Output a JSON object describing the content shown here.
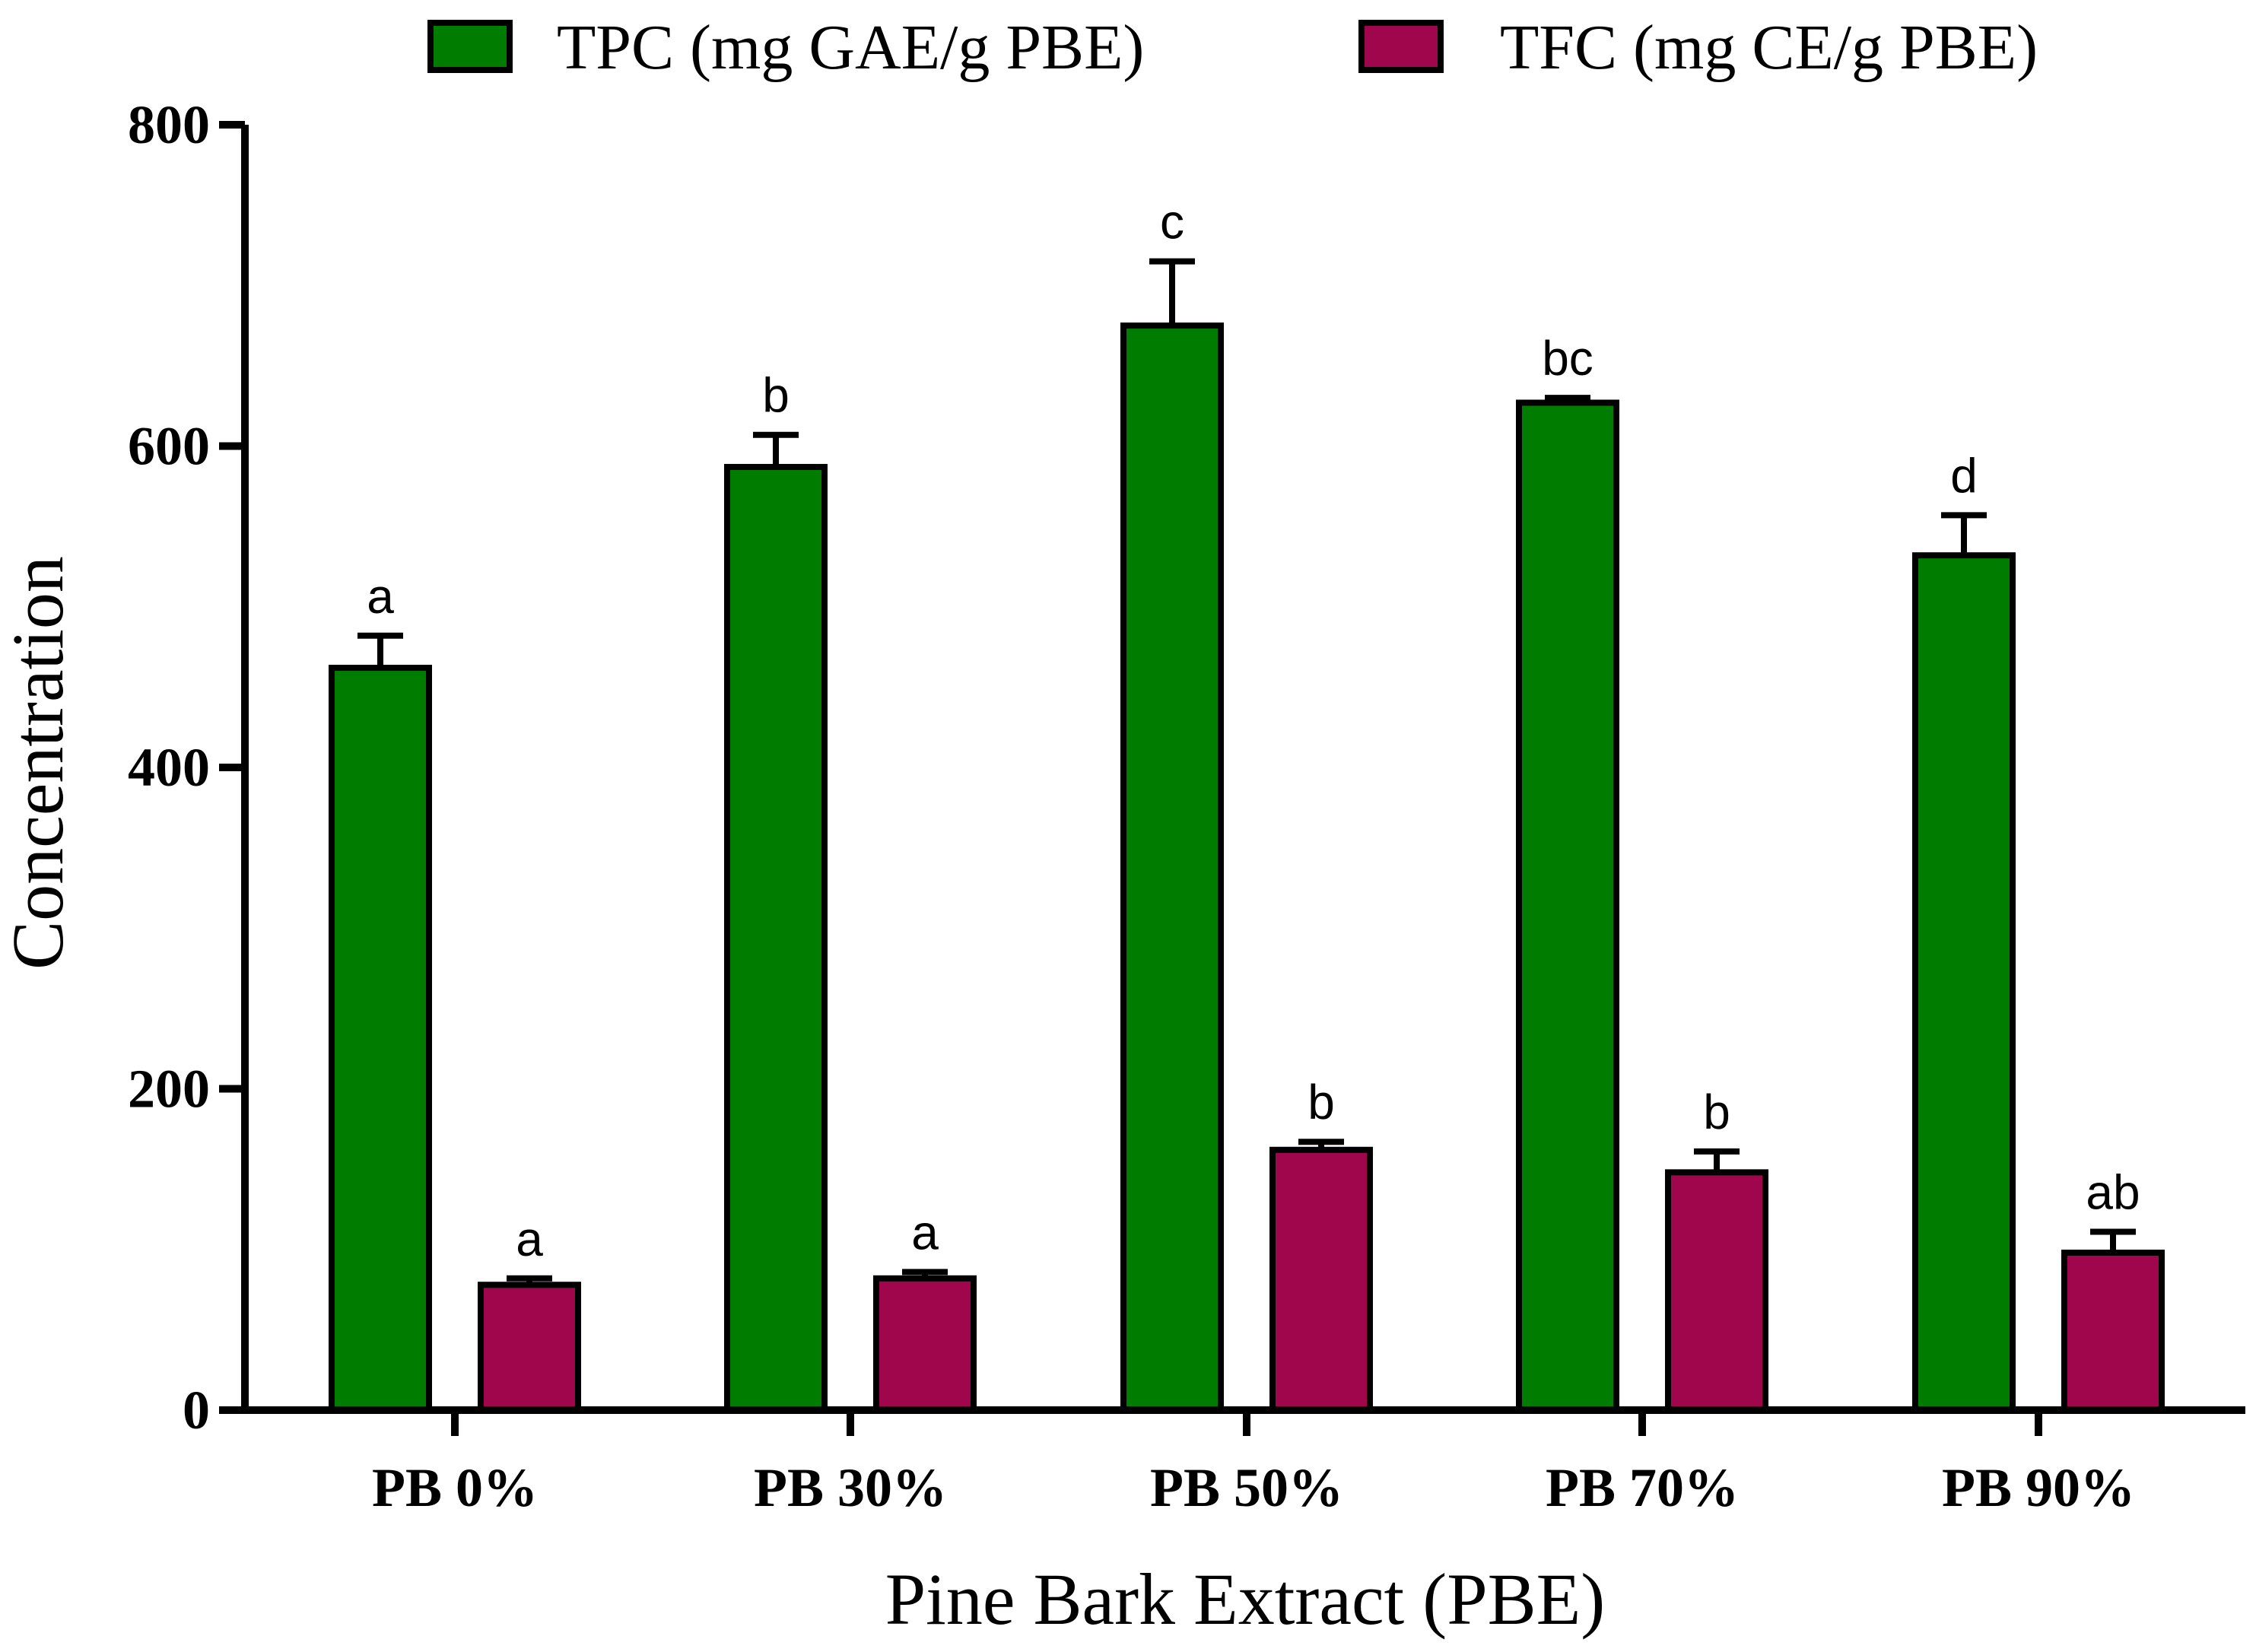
{
  "chart_data": {
    "type": "bar",
    "xlabel": "Pine Bark Extract (PBE)",
    "ylabel": "Concentration",
    "ylim": [
      0,
      800
    ],
    "yticks": [
      "0",
      "200",
      "400",
      "600",
      "800"
    ],
    "ytick_values": [
      0,
      200,
      400,
      600,
      800
    ],
    "grid": false,
    "legend_position": "top",
    "categories": [
      "PB 0%",
      "PB 30%",
      "PB 50%",
      "PB 70%",
      "PB 90%"
    ],
    "series": [
      {
        "name": "TPC (mg GAE/g PBE)",
        "color": "#007c00",
        "values": [
          462,
          587,
          675,
          627,
          532
        ],
        "errors": [
          20,
          20,
          40,
          3,
          25
        ],
        "letters": [
          "a",
          "b",
          "c",
          "bc",
          "d"
        ]
      },
      {
        "name": "TFC (mg CE/g PBE)",
        "color": "#a0064b",
        "values": [
          78,
          82,
          162,
          148,
          98
        ],
        "errors": [
          4,
          4,
          5,
          13,
          13
        ],
        "letters": [
          "a",
          "a",
          "b",
          "b",
          "ab"
        ]
      }
    ]
  }
}
